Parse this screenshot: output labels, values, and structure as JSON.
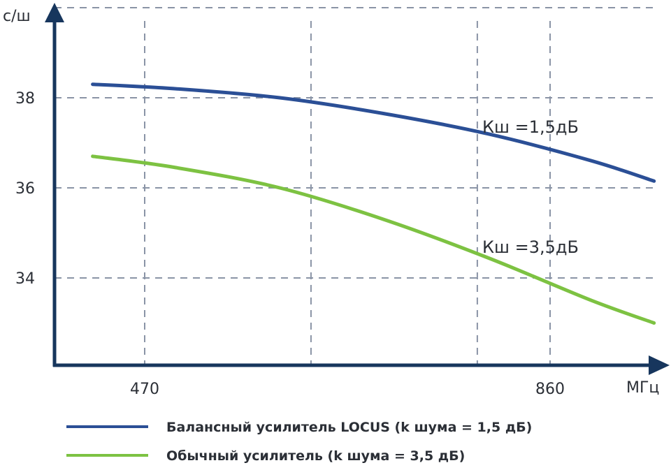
{
  "chart_data": {
    "type": "line",
    "title": "",
    "xlabel": "МГц",
    "ylabel": "с/ш",
    "xlim": [
      300,
      1000
    ],
    "ylim": [
      32,
      40
    ],
    "x_ticks": [
      470,
      860
    ],
    "x_tick_labels": [
      "470",
      "860"
    ],
    "y_ticks": [
      34,
      36,
      38
    ],
    "y_tick_labels": [
      "34",
      "36",
      "38"
    ],
    "x_gridlines": [
      470,
      630,
      790,
      860,
      980
    ],
    "y_gridlines": [
      34,
      36,
      38,
      40
    ],
    "grid": true,
    "legend_position": "bottom",
    "series": [
      {
        "name": "Балансный усилитель LOCUS (k шума = 1,5 дБ)",
        "color": "#2b4f96",
        "annotation": "Кш =1,5дБ",
        "x": [
          420,
          500,
          600,
          700,
          800,
          900,
          960
        ],
        "y": [
          38.3,
          38.2,
          38.0,
          37.65,
          37.2,
          36.6,
          36.15
        ]
      },
      {
        "name": "Обычный усилитель (k шума = 3,5 дБ)",
        "color": "#7dc242",
        "annotation": "Кш =3,5дБ",
        "x": [
          420,
          500,
          600,
          700,
          800,
          900,
          960
        ],
        "y": [
          36.7,
          36.45,
          36.0,
          35.3,
          34.45,
          33.5,
          33.0
        ]
      }
    ]
  }
}
